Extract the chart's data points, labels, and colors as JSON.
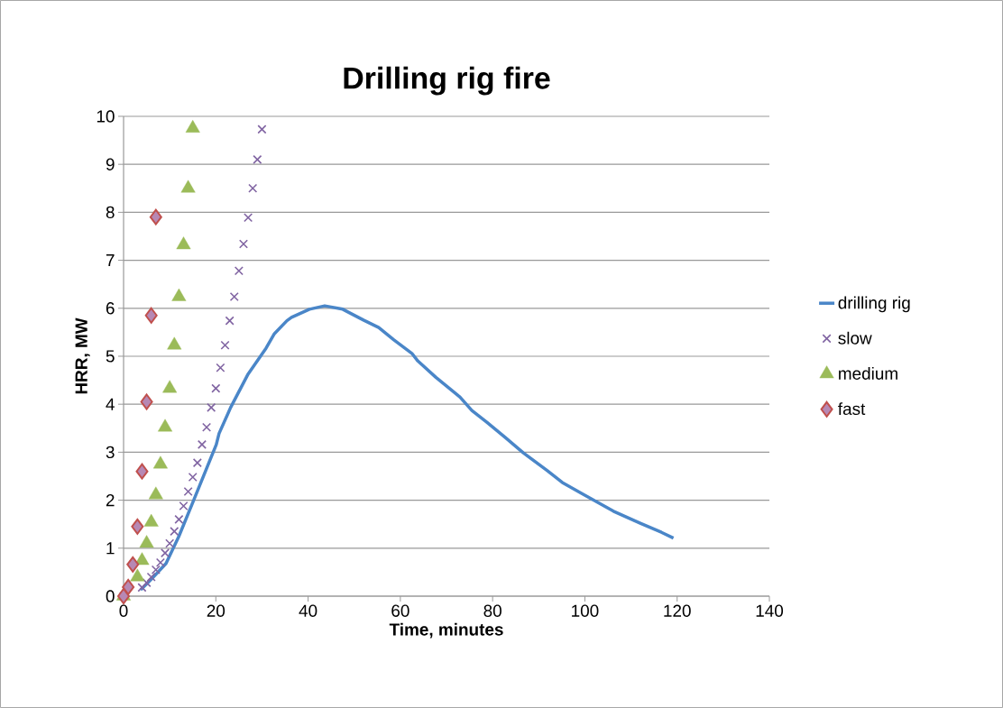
{
  "chart_data": {
    "type": "scatter",
    "title": "Drilling rig fire",
    "xlabel": "Time, minutes",
    "ylabel": "HRR, MW",
    "xlim": [
      0,
      140
    ],
    "xticks": [
      0,
      20,
      40,
      60,
      80,
      100,
      120,
      140
    ],
    "ylim": [
      0,
      10
    ],
    "yticks": [
      0,
      1,
      2,
      3,
      4,
      5,
      6,
      7,
      8,
      9,
      10
    ],
    "grid": "y",
    "legend": "right",
    "series": [
      {
        "name": "drilling rig",
        "type": "line",
        "color": "#4a86c8",
        "marker": "none",
        "line_style": "solid",
        "x": [
          3.7,
          6,
          9.2,
          12,
          15.2,
          20.1,
          20.7,
          23.2,
          27.0,
          30.9,
          32.7,
          35.4,
          36.4,
          40.3,
          43.6,
          47.5,
          52.1,
          55.3,
          58.6,
          62.5,
          63.8,
          67.7,
          72.9,
          75.5,
          78.8,
          82.7,
          86.6,
          91.8,
          95.1,
          99.7,
          106.2,
          112.0,
          116.6,
          119.2
        ],
        "values": [
          0.13,
          0.35,
          0.68,
          1.25,
          2.0,
          3.16,
          3.39,
          3.93,
          4.63,
          5.17,
          5.47,
          5.74,
          5.81,
          5.98,
          6.05,
          5.98,
          5.75,
          5.6,
          5.34,
          5.06,
          4.9,
          4.56,
          4.15,
          3.87,
          3.62,
          3.31,
          2.99,
          2.62,
          2.37,
          2.12,
          1.77,
          1.52,
          1.33,
          1.21
        ]
      },
      {
        "name": "slow",
        "color": "#8064a2",
        "marker": "cross",
        "x": [
          0,
          1,
          2,
          3,
          4,
          5,
          6,
          7,
          8,
          9,
          10,
          11,
          12,
          13,
          14,
          15,
          16,
          17,
          18,
          19,
          20,
          21,
          22,
          23,
          24,
          25,
          26,
          27,
          28,
          29,
          30
        ],
        "values": [
          0,
          null,
          null,
          null,
          0.18,
          0.28,
          0.4,
          0.55,
          0.7,
          0.9,
          1.1,
          1.35,
          1.6,
          1.88,
          2.18,
          2.48,
          2.78,
          3.16,
          3.52,
          3.93,
          4.33,
          4.76,
          5.23,
          5.74,
          6.24,
          6.78,
          7.34,
          7.89,
          8.5,
          9.1,
          9.73
        ]
      },
      {
        "name": "medium",
        "color": "#9bbb59",
        "marker": "triangle",
        "x": [
          0,
          1,
          2,
          3,
          4,
          5,
          6,
          7,
          8,
          9,
          10,
          11,
          12,
          13,
          14,
          15
        ],
        "values": [
          0,
          null,
          null,
          0.4,
          0.74,
          1.1,
          1.54,
          2.11,
          2.75,
          3.52,
          4.33,
          5.23,
          6.24,
          7.32,
          8.5,
          9.75
        ]
      },
      {
        "name": "fast",
        "color": "#c0504d",
        "marker": "diamond",
        "x": [
          0,
          1,
          2,
          3,
          4,
          5,
          6,
          7
        ],
        "values": [
          0,
          0.19,
          0.66,
          1.45,
          2.6,
          4.05,
          5.85,
          7.9
        ]
      }
    ]
  }
}
